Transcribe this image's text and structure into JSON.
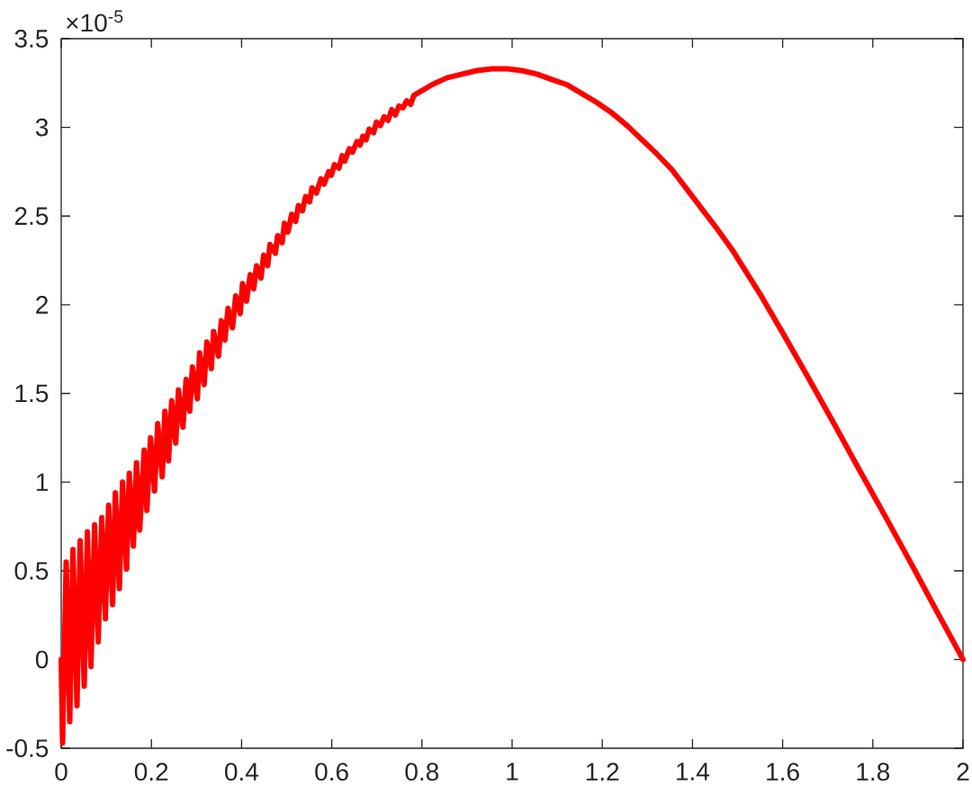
{
  "chart_data": {
    "type": "line",
    "color": "#ff0000",
    "x": [
      0,
      0.003,
      0.011,
      0.019,
      0.026,
      0.035,
      0.042,
      0.051,
      0.058,
      0.066,
      0.074,
      0.082,
      0.09,
      0.098,
      0.105,
      0.114,
      0.12,
      0.129,
      0.136,
      0.145,
      0.151,
      0.16,
      0.167,
      0.174,
      0.184,
      0.19,
      0.198,
      0.207,
      0.214,
      0.224,
      0.23,
      0.238,
      0.245,
      0.254,
      0.26,
      0.27,
      0.277,
      0.285,
      0.291,
      0.302,
      0.307,
      0.317,
      0.323,
      0.333,
      0.338,
      0.349,
      0.355,
      0.363,
      0.37,
      0.38,
      0.387,
      0.397,
      0.402,
      0.411,
      0.419,
      0.427,
      0.433,
      0.443,
      0.449,
      0.458,
      0.463,
      0.475,
      0.48,
      0.49,
      0.495,
      0.503,
      0.511,
      0.52,
      0.526,
      0.535,
      0.542,
      0.551,
      0.556,
      0.566,
      0.576,
      0.583,
      0.593,
      0.599,
      0.606,
      0.616,
      0.623,
      0.629,
      0.639,
      0.646,
      0.656,
      0.663,
      0.669,
      0.676,
      0.683,
      0.693,
      0.699,
      0.708,
      0.716,
      0.725,
      0.733,
      0.741,
      0.749,
      0.758,
      0.766,
      0.775,
      0.782,
      0.822,
      0.856,
      0.889,
      0.922,
      0.955,
      0.989,
      1.022,
      1.055,
      1.088,
      1.122,
      1.155,
      1.188,
      1.222,
      1.255,
      1.288,
      1.321,
      1.355,
      1.388,
      1.421,
      1.454,
      1.488,
      1.55,
      1.605,
      1.661,
      1.716,
      1.772,
      1.827,
      1.883,
      1.938,
      2
    ],
    "values": [
      0,
      -0.47,
      0.55,
      -0.35,
      0.62,
      -0.26,
      0.67,
      -0.15,
      0.72,
      -0.04,
      0.76,
      0.1,
      0.8,
      0.23,
      0.87,
      0.31,
      0.94,
      0.4,
      1.0,
      0.51,
      1.05,
      0.64,
      1.11,
      0.73,
      1.18,
      0.84,
      1.25,
      0.95,
      1.33,
      1.03,
      1.4,
      1.12,
      1.46,
      1.22,
      1.52,
      1.31,
      1.58,
      1.4,
      1.65,
      1.47,
      1.73,
      1.55,
      1.79,
      1.64,
      1.85,
      1.71,
      1.91,
      1.8,
      1.98,
      1.87,
      2.05,
      1.95,
      2.12,
      2.02,
      2.17,
      2.09,
      2.22,
      2.15,
      2.28,
      2.22,
      2.34,
      2.29,
      2.39,
      2.35,
      2.46,
      2.41,
      2.51,
      2.47,
      2.56,
      2.53,
      2.61,
      2.58,
      2.66,
      2.63,
      2.71,
      2.68,
      2.75,
      2.73,
      2.79,
      2.77,
      2.84,
      2.81,
      2.88,
      2.86,
      2.92,
      2.9,
      2.95,
      2.93,
      2.99,
      2.97,
      3.03,
      3.01,
      3.06,
      3.04,
      3.1,
      3.07,
      3.12,
      3.11,
      3.15,
      3.13,
      3.18,
      3.24,
      3.28,
      3.3,
      3.32,
      3.33,
      3.33,
      3.32,
      3.3,
      3.27,
      3.24,
      3.19,
      3.14,
      3.08,
      3.01,
      2.93,
      2.85,
      2.76,
      2.65,
      2.54,
      2.43,
      2.31,
      2.06,
      1.82,
      1.57,
      1.32,
      1.06,
      0.81,
      0.55,
      0.29,
      0
    ],
    "xlim": [
      0,
      2
    ],
    "xticks": [
      0,
      0.2,
      0.4,
      0.6,
      0.8,
      1,
      1.2,
      1.4,
      1.6,
      1.8,
      2
    ],
    "ylim": [
      -0.5,
      3.5
    ],
    "yticks": [
      -0.5,
      0,
      0.5,
      1,
      1.5,
      2,
      2.5,
      3,
      3.5
    ],
    "annotations": [
      "×10$^{-5}$"
    ]
  }
}
